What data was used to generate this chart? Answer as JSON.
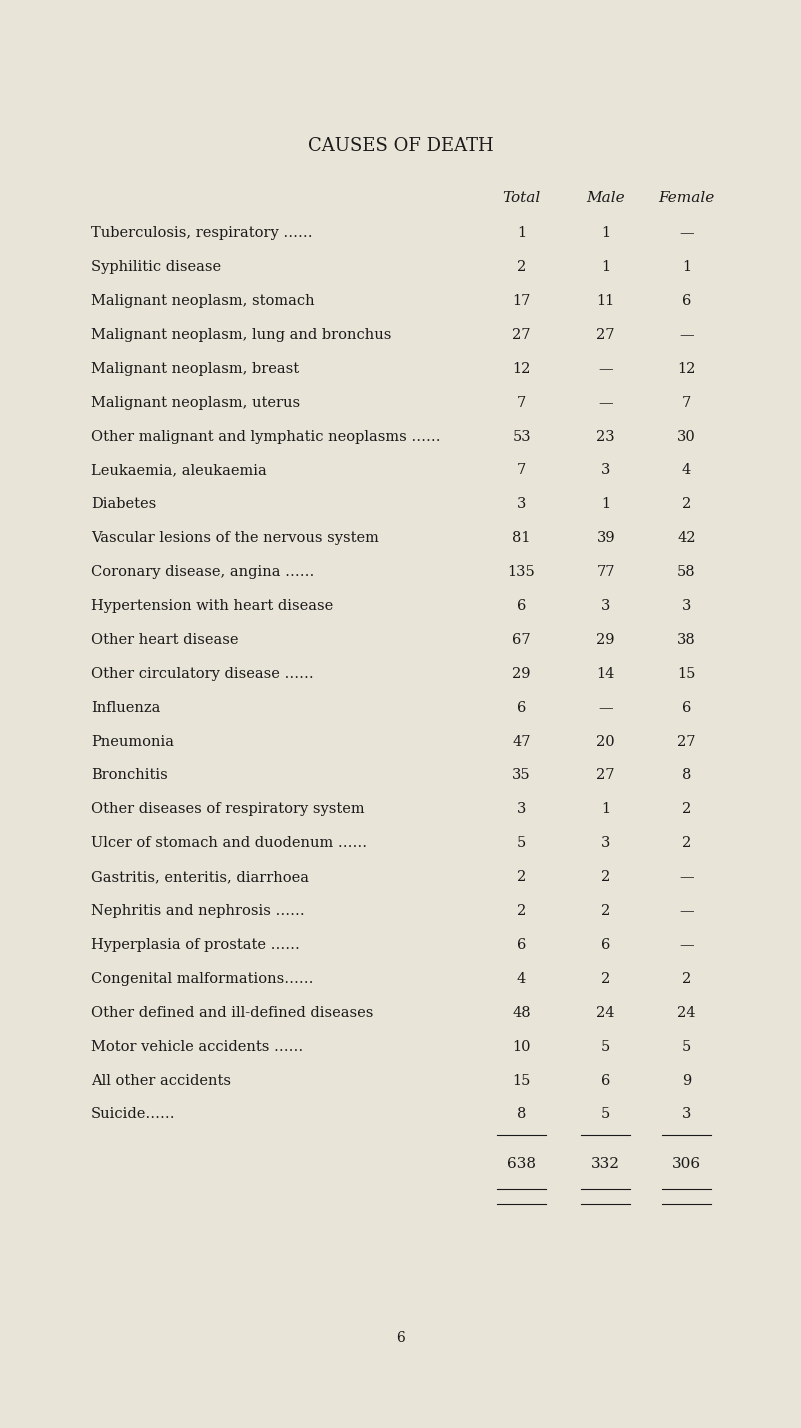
{
  "title": "CAUSES OF DEATH",
  "header": [
    "Total",
    "Male",
    "Female"
  ],
  "rows": [
    [
      "Tuberculosis, respiratory ……",
      "1",
      "1",
      "—"
    ],
    [
      "Syphilitic disease",
      "2",
      "1",
      "1"
    ],
    [
      "Malignant neoplasm, stomach",
      "17",
      "11",
      "6"
    ],
    [
      "Malignant neoplasm, lung and bronchus",
      "27",
      "27",
      "—"
    ],
    [
      "Malignant neoplasm, breast",
      "12",
      "—",
      "12"
    ],
    [
      "Malignant neoplasm, uterus",
      "7",
      "—",
      "7"
    ],
    [
      "Other malignant and lymphatic neoplasms ……",
      "53",
      "23",
      "30"
    ],
    [
      "Leukaemia, aleukaemia",
      "7",
      "3",
      "4"
    ],
    [
      "Diabetes",
      "3",
      "1",
      "2"
    ],
    [
      "Vascular lesions of the nervous system",
      "81",
      "39",
      "42"
    ],
    [
      "Coronary disease, angina ……",
      "135",
      "77",
      "58"
    ],
    [
      "Hypertension with heart disease",
      "6",
      "3",
      "3"
    ],
    [
      "Other heart disease",
      "67",
      "29",
      "38"
    ],
    [
      "Other circulatory disease ……",
      "29",
      "14",
      "15"
    ],
    [
      "Influenza",
      "6",
      "—",
      "6"
    ],
    [
      "Pneumonia",
      "47",
      "20",
      "27"
    ],
    [
      "Bronchitis",
      "35",
      "27",
      "8"
    ],
    [
      "Other diseases of respiratory system",
      "3",
      "1",
      "2"
    ],
    [
      "Ulcer of stomach and duodenum ……",
      "5",
      "3",
      "2"
    ],
    [
      "Gastritis, enteritis, diarrhoea",
      "2",
      "2",
      "—"
    ],
    [
      "Nephritis and nephrosis ……",
      "2",
      "2",
      "—"
    ],
    [
      "Hyperplasia of prostate ……",
      "6",
      "6",
      "—"
    ],
    [
      "Congenital malformations……",
      "4",
      "2",
      "2"
    ],
    [
      "Other defined and ill-defined diseases",
      "48",
      "24",
      "24"
    ],
    [
      "Motor vehicle accidents ……",
      "10",
      "5",
      "5"
    ],
    [
      "All other accidents",
      "15",
      "6",
      "9"
    ],
    [
      "Suicide……",
      "8",
      "5",
      "3"
    ]
  ],
  "totals": [
    "638",
    "332",
    "306"
  ],
  "page_number": "6",
  "bg_color": "#f5f2ea",
  "page_bg": "#e8e4d8",
  "text_color": "#1a1a1a",
  "title_fontsize": 13,
  "header_fontsize": 11,
  "row_fontsize": 10.5,
  "total_fontsize": 11
}
